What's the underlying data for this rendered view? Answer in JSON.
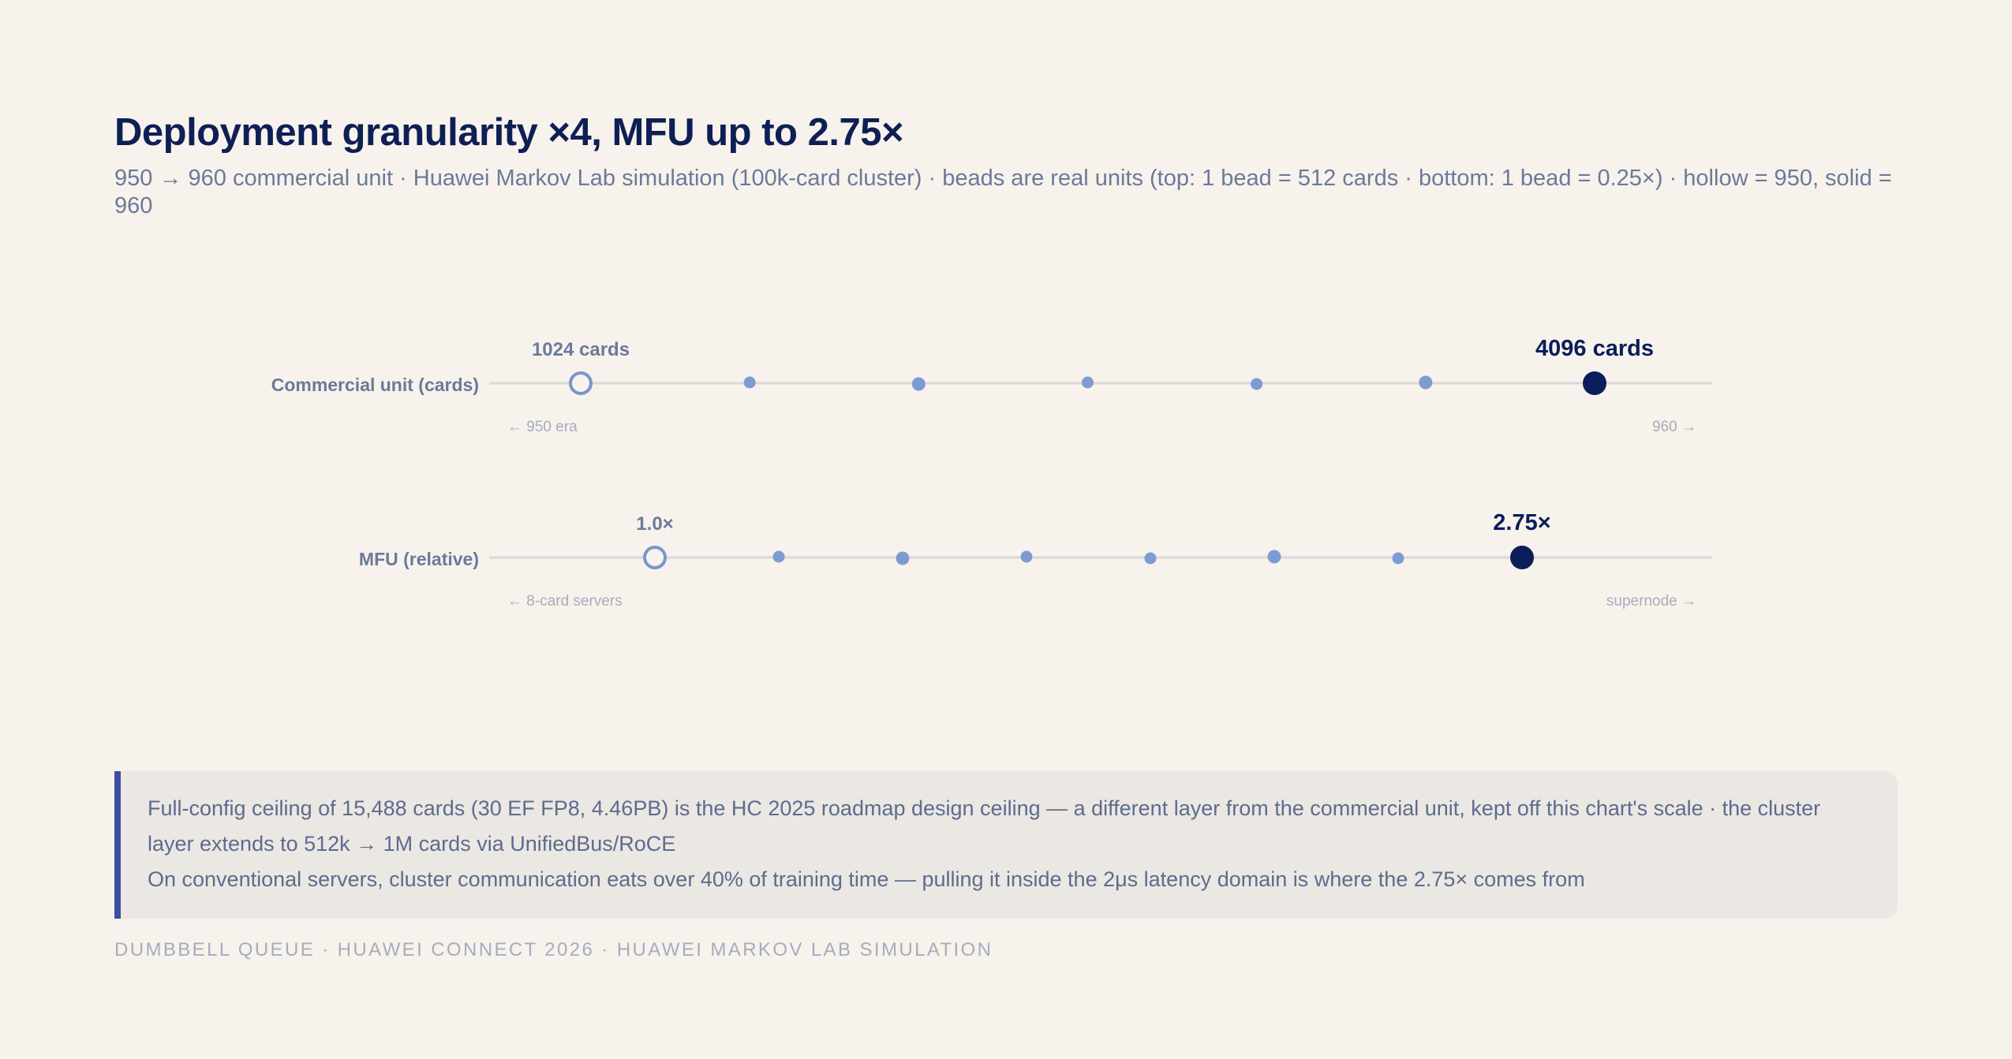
{
  "header": {
    "title": "Deployment granularity ×4, MFU up to 2.75×",
    "subtitle": "950 → 960 commercial unit · Huawei Markov Lab simulation (100k-card cluster) · beads are real units (top: 1 bead = 512 cards · bottom: 1 bead = 0.25×) · hollow = 950, solid = 960"
  },
  "chart_data": {
    "type": "scatter",
    "title": "Deployment granularity ×4, MFU up to 2.75×",
    "subtitle": "950 → 960 commercial unit · Huawei Markov Lab simulation (100k-card cluster) · beads are real units (top: 1 bead = 512 cards · bottom: 1 bead = 0.25×) · hollow = 950, solid = 960",
    "colors": {
      "hollow": "#7896cf",
      "solid": "#0b1d5a",
      "bead": "#7d9bd2",
      "track": "#dbd8d7"
    },
    "rows": [
      {
        "label": "Commercial unit (cards)",
        "start_value": 1024,
        "end_value": 4096,
        "step": 512,
        "start_label": "1024 cards",
        "end_label": "4096 cards",
        "left_note": "← 950 era",
        "right_note": "960 →",
        "beads": [
          1536,
          2048,
          2560,
          3072,
          3584
        ]
      },
      {
        "label": "MFU (relative)",
        "start_value": 1.0,
        "end_value": 2.75,
        "step": 0.25,
        "start_label": "1.0×",
        "end_label": "2.75×",
        "left_note": "← 8-card servers",
        "right_note": "supernode →",
        "beads": [
          1.25,
          1.5,
          1.75,
          2.0,
          2.25,
          2.5
        ]
      }
    ]
  },
  "callout": {
    "line1": "Full-config ceiling of 15,488 cards (30 EF FP8, 4.46PB) is the HC 2025 roadmap design ceiling — a different layer from the commercial unit, kept off this chart's scale · the cluster layer extends to 512k → 1M cards via UnifiedBus/RoCE",
    "line2": "On conventional servers, cluster communication eats over 40% of training time — pulling it inside the 2μs latency domain is where the 2.75× comes from"
  },
  "footer": {
    "text": "DUMBBELL QUEUE · HUAWEI CONNECT 2026 · HUAWEI MARKOV LAB SIMULATION"
  }
}
